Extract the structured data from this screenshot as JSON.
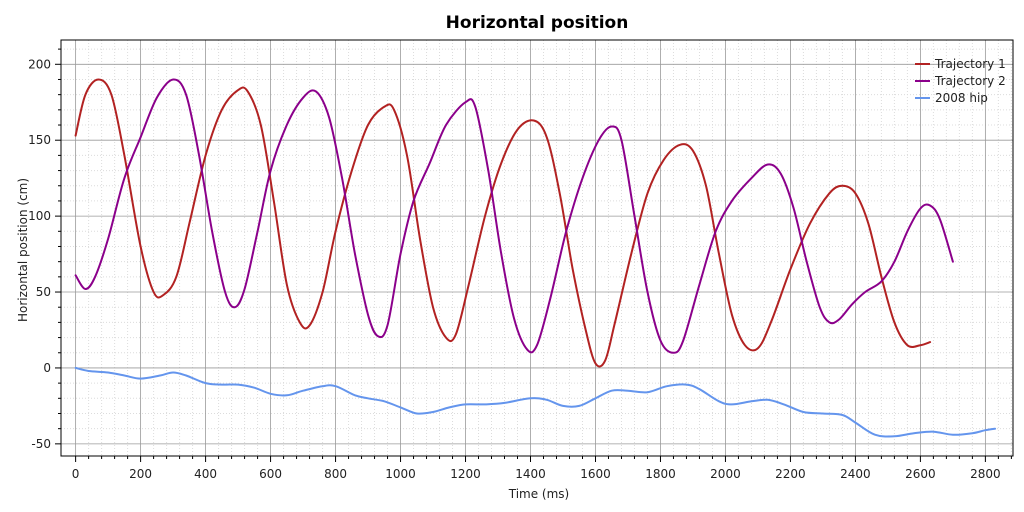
{
  "chart_data": {
    "type": "line",
    "title": "Horizontal position",
    "xlabel": "Time (ms)",
    "ylabel": "Horizontal position (cm)",
    "xlim": [
      -45,
      2885
    ],
    "ylim": [
      -58,
      216
    ],
    "x_ticks": [
      0,
      200,
      400,
      600,
      800,
      1000,
      1200,
      1400,
      1600,
      1800,
      2000,
      2200,
      2400,
      2600,
      2800
    ],
    "y_ticks": [
      -50,
      0,
      50,
      100,
      150,
      200
    ],
    "grid": true,
    "legend_position": "top-right",
    "series": [
      {
        "name": "Trajectory 1",
        "color": "#b22222",
        "points": [
          [
            0,
            153
          ],
          [
            30,
            180
          ],
          [
            70,
            190
          ],
          [
            110,
            180
          ],
          [
            150,
            140
          ],
          [
            200,
            80
          ],
          [
            240,
            50
          ],
          [
            270,
            48
          ],
          [
            310,
            60
          ],
          [
            350,
            95
          ],
          [
            400,
            140
          ],
          [
            450,
            170
          ],
          [
            500,
            183
          ],
          [
            530,
            182
          ],
          [
            570,
            160
          ],
          [
            610,
            110
          ],
          [
            650,
            55
          ],
          [
            690,
            30
          ],
          [
            720,
            28
          ],
          [
            760,
            50
          ],
          [
            800,
            90
          ],
          [
            850,
            130
          ],
          [
            900,
            160
          ],
          [
            950,
            172
          ],
          [
            980,
            170
          ],
          [
            1020,
            140
          ],
          [
            1060,
            85
          ],
          [
            1100,
            40
          ],
          [
            1140,
            20
          ],
          [
            1170,
            22
          ],
          [
            1210,
            55
          ],
          [
            1260,
            100
          ],
          [
            1310,
            135
          ],
          [
            1360,
            157
          ],
          [
            1410,
            163
          ],
          [
            1450,
            152
          ],
          [
            1490,
            115
          ],
          [
            1530,
            65
          ],
          [
            1570,
            25
          ],
          [
            1600,
            3
          ],
          [
            1630,
            5
          ],
          [
            1660,
            30
          ],
          [
            1710,
            75
          ],
          [
            1760,
            115
          ],
          [
            1810,
            137
          ],
          [
            1860,
            147
          ],
          [
            1900,
            143
          ],
          [
            1940,
            120
          ],
          [
            1980,
            75
          ],
          [
            2020,
            35
          ],
          [
            2060,
            15
          ],
          [
            2100,
            13
          ],
          [
            2140,
            30
          ],
          [
            2200,
            65
          ],
          [
            2260,
            95
          ],
          [
            2320,
            115
          ],
          [
            2360,
            120
          ],
          [
            2400,
            115
          ],
          [
            2440,
            95
          ],
          [
            2480,
            60
          ],
          [
            2520,
            30
          ],
          [
            2560,
            15
          ],
          [
            2600,
            15
          ],
          [
            2630,
            17
          ]
        ]
      },
      {
        "name": "Trajectory 2",
        "color": "#8b008b",
        "points": [
          [
            0,
            61
          ],
          [
            30,
            52
          ],
          [
            60,
            60
          ],
          [
            100,
            85
          ],
          [
            150,
            125
          ],
          [
            200,
            152
          ],
          [
            250,
            178
          ],
          [
            300,
            190
          ],
          [
            340,
            180
          ],
          [
            380,
            140
          ],
          [
            420,
            90
          ],
          [
            460,
            50
          ],
          [
            490,
            40
          ],
          [
            520,
            52
          ],
          [
            560,
            90
          ],
          [
            600,
            130
          ],
          [
            650,
            160
          ],
          [
            700,
            178
          ],
          [
            740,
            182
          ],
          [
            780,
            165
          ],
          [
            820,
            125
          ],
          [
            860,
            75
          ],
          [
            900,
            35
          ],
          [
            930,
            21
          ],
          [
            960,
            28
          ],
          [
            1000,
            75
          ],
          [
            1040,
            110
          ],
          [
            1090,
            135
          ],
          [
            1140,
            160
          ],
          [
            1200,
            175
          ],
          [
            1230,
            172
          ],
          [
            1270,
            130
          ],
          [
            1310,
            75
          ],
          [
            1350,
            32
          ],
          [
            1390,
            12
          ],
          [
            1420,
            15
          ],
          [
            1460,
            45
          ],
          [
            1510,
            90
          ],
          [
            1560,
            125
          ],
          [
            1610,
            150
          ],
          [
            1650,
            159
          ],
          [
            1680,
            150
          ],
          [
            1720,
            100
          ],
          [
            1760,
            50
          ],
          [
            1800,
            18
          ],
          [
            1840,
            10
          ],
          [
            1870,
            18
          ],
          [
            1920,
            55
          ],
          [
            1970,
            90
          ],
          [
            2020,
            110
          ],
          [
            2080,
            125
          ],
          [
            2130,
            134
          ],
          [
            2170,
            128
          ],
          [
            2210,
            105
          ],
          [
            2250,
            70
          ],
          [
            2290,
            40
          ],
          [
            2320,
            30
          ],
          [
            2350,
            32
          ],
          [
            2390,
            42
          ],
          [
            2430,
            50
          ],
          [
            2480,
            57
          ],
          [
            2520,
            70
          ],
          [
            2560,
            90
          ],
          [
            2600,
            105
          ],
          [
            2630,
            107
          ],
          [
            2660,
            98
          ],
          [
            2700,
            70
          ]
        ]
      },
      {
        "name": "2008 hip",
        "color": "#6495ed",
        "points": [
          [
            0,
            0
          ],
          [
            40,
            -2
          ],
          [
            100,
            -3
          ],
          [
            150,
            -5
          ],
          [
            200,
            -7
          ],
          [
            260,
            -5
          ],
          [
            300,
            -3
          ],
          [
            340,
            -5
          ],
          [
            400,
            -10
          ],
          [
            450,
            -11
          ],
          [
            500,
            -11
          ],
          [
            550,
            -13
          ],
          [
            600,
            -17
          ],
          [
            650,
            -18
          ],
          [
            700,
            -15
          ],
          [
            760,
            -12
          ],
          [
            800,
            -12
          ],
          [
            860,
            -18
          ],
          [
            900,
            -20
          ],
          [
            950,
            -22
          ],
          [
            1000,
            -26
          ],
          [
            1050,
            -30
          ],
          [
            1100,
            -29
          ],
          [
            1150,
            -26
          ],
          [
            1200,
            -24
          ],
          [
            1260,
            -24
          ],
          [
            1320,
            -23
          ],
          [
            1400,
            -20
          ],
          [
            1450,
            -21
          ],
          [
            1500,
            -25
          ],
          [
            1550,
            -25
          ],
          [
            1600,
            -20
          ],
          [
            1650,
            -15
          ],
          [
            1700,
            -15
          ],
          [
            1760,
            -16
          ],
          [
            1820,
            -12
          ],
          [
            1880,
            -11
          ],
          [
            1920,
            -14
          ],
          [
            1980,
            -22
          ],
          [
            2020,
            -24
          ],
          [
            2080,
            -22
          ],
          [
            2130,
            -21
          ],
          [
            2180,
            -24
          ],
          [
            2240,
            -29
          ],
          [
            2300,
            -30
          ],
          [
            2360,
            -31
          ],
          [
            2400,
            -36
          ],
          [
            2460,
            -44
          ],
          [
            2520,
            -45
          ],
          [
            2580,
            -43
          ],
          [
            2640,
            -42
          ],
          [
            2700,
            -44
          ],
          [
            2760,
            -43
          ],
          [
            2800,
            -41
          ],
          [
            2830,
            -40
          ]
        ]
      }
    ]
  }
}
